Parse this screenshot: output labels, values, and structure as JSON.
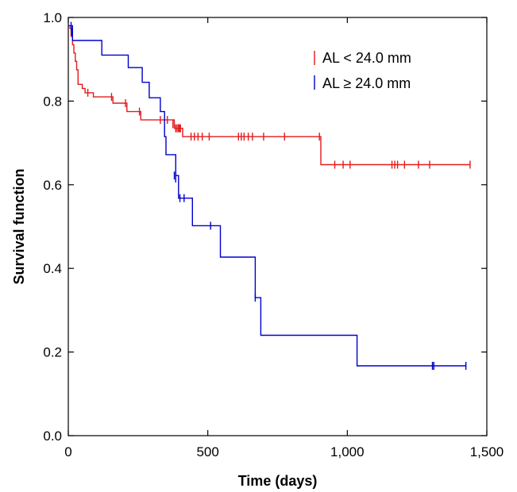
{
  "chart_data": {
    "type": "line",
    "chart_kind": "kaplan-meier step plot",
    "title": "",
    "xlabel": "Time (days)",
    "ylabel": "Survival function",
    "xlim": [
      0,
      1500
    ],
    "ylim": [
      0,
      1.0
    ],
    "xticks": [
      0,
      500,
      1000,
      1500
    ],
    "xtick_labels": [
      "0",
      "500",
      "1,000",
      "1,500"
    ],
    "yticks": [
      0,
      0.2,
      0.4,
      0.6,
      0.8,
      1.0
    ],
    "ytick_labels": [
      "0.0",
      "0.2",
      "0.4",
      "0.6",
      "0.8",
      "1.0"
    ],
    "grid": false,
    "legend_position": "top-right",
    "series": [
      {
        "name": "AL < 24.0 mm",
        "color": "#e41a1c",
        "steps": [
          [
            0,
            0.975
          ],
          [
            10,
            0.955
          ],
          [
            15,
            0.935
          ],
          [
            20,
            0.915
          ],
          [
            25,
            0.895
          ],
          [
            30,
            0.875
          ],
          [
            35,
            0.84
          ],
          [
            50,
            0.83
          ],
          [
            60,
            0.82
          ],
          [
            90,
            0.81
          ],
          [
            160,
            0.795
          ],
          [
            210,
            0.775
          ],
          [
            260,
            0.755
          ],
          [
            380,
            0.735
          ],
          [
            410,
            0.715
          ],
          [
            905,
            0.715
          ],
          [
            905,
            0.648
          ],
          [
            1440,
            0.648
          ]
        ],
        "censored": [
          [
            70,
            0.82
          ],
          [
            155,
            0.81
          ],
          [
            205,
            0.795
          ],
          [
            255,
            0.775
          ],
          [
            330,
            0.755
          ],
          [
            355,
            0.755
          ],
          [
            375,
            0.745
          ],
          [
            385,
            0.735
          ],
          [
            390,
            0.735
          ],
          [
            395,
            0.735
          ],
          [
            398,
            0.735
          ],
          [
            402,
            0.735
          ],
          [
            440,
            0.715
          ],
          [
            452,
            0.715
          ],
          [
            465,
            0.715
          ],
          [
            480,
            0.715
          ],
          [
            505,
            0.715
          ],
          [
            610,
            0.715
          ],
          [
            620,
            0.715
          ],
          [
            630,
            0.715
          ],
          [
            645,
            0.715
          ],
          [
            660,
            0.715
          ],
          [
            700,
            0.715
          ],
          [
            775,
            0.715
          ],
          [
            900,
            0.715
          ],
          [
            955,
            0.648
          ],
          [
            985,
            0.648
          ],
          [
            1010,
            0.648
          ],
          [
            1160,
            0.648
          ],
          [
            1170,
            0.648
          ],
          [
            1180,
            0.648
          ],
          [
            1205,
            0.648
          ],
          [
            1255,
            0.648
          ],
          [
            1295,
            0.648
          ],
          [
            1440,
            0.648
          ]
        ]
      },
      {
        "name": "AL ≥ 24.0 mm",
        "color": "#0000cd",
        "steps": [
          [
            0,
            0.98
          ],
          [
            15,
            0.945
          ],
          [
            120,
            0.91
          ],
          [
            215,
            0.88
          ],
          [
            265,
            0.845
          ],
          [
            290,
            0.808
          ],
          [
            330,
            0.775
          ],
          [
            345,
            0.715
          ],
          [
            350,
            0.672
          ],
          [
            385,
            0.622
          ],
          [
            395,
            0.568
          ],
          [
            445,
            0.502
          ],
          [
            545,
            0.427
          ],
          [
            670,
            0.33
          ],
          [
            690,
            0.24
          ],
          [
            1035,
            0.24
          ],
          [
            1035,
            0.167
          ],
          [
            1425,
            0.167
          ]
        ],
        "censored": [
          [
            10,
            0.98
          ],
          [
            12,
            0.965
          ],
          [
            380,
            0.622
          ],
          [
            385,
            0.615
          ],
          [
            400,
            0.568
          ],
          [
            415,
            0.568
          ],
          [
            510,
            0.502
          ],
          [
            670,
            0.33
          ],
          [
            1305,
            0.167
          ],
          [
            1310,
            0.167
          ],
          [
            1425,
            0.167
          ]
        ]
      }
    ]
  }
}
